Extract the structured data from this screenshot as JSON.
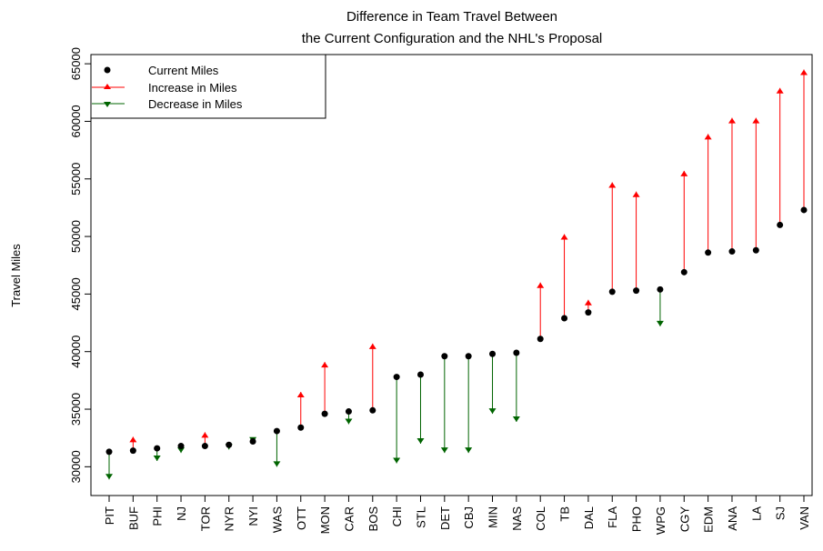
{
  "chart_data": {
    "type": "arrow-dot",
    "title": [
      "Difference in Team Travel Between",
      "the Current Configuration and the NHL's Proposal"
    ],
    "ylabel": "Travel Miles",
    "categories": [
      "PIT",
      "BUF",
      "PHI",
      "NJ",
      "TOR",
      "NYR",
      "NYI",
      "WAS",
      "OTT",
      "MON",
      "CAR",
      "BOS",
      "CHI",
      "STL",
      "DET",
      "CBJ",
      "MIN",
      "NAS",
      "COL",
      "TB",
      "DAL",
      "FLA",
      "PHO",
      "WPG",
      "CGY",
      "EDM",
      "ANA",
      "LA",
      "SJ",
      "VAN"
    ],
    "series": [
      {
        "name": "Current Miles",
        "color": "#000000",
        "values": [
          31300,
          31400,
          31600,
          31800,
          31800,
          31900,
          32200,
          33100,
          33400,
          34600,
          34800,
          34900,
          37800,
          38000,
          39600,
          39600,
          39800,
          39900,
          41100,
          42900,
          43400,
          45200,
          45300,
          45400,
          46900,
          48600,
          48700,
          48800,
          51000,
          52300
        ]
      }
    ],
    "proposed": [
      28900,
      32600,
      30500,
      31200,
      33000,
      31500,
      32100,
      30000,
      36500,
      39100,
      33700,
      40700,
      30300,
      32000,
      31200,
      31200,
      34600,
      33900,
      46000,
      50200,
      44500,
      54700,
      53900,
      42200,
      55700,
      58900,
      60300,
      60300,
      62900,
      64500
    ],
    "legend": [
      {
        "name": "Increase in Miles",
        "color": "#ff0000"
      },
      {
        "name": "Decrease in Miles",
        "color": "#006400"
      }
    ],
    "legend_position": "top-left",
    "ylim": [
      27500,
      65800
    ],
    "yticks": [
      30000,
      35000,
      40000,
      45000,
      50000,
      55000,
      60000,
      65000
    ]
  }
}
